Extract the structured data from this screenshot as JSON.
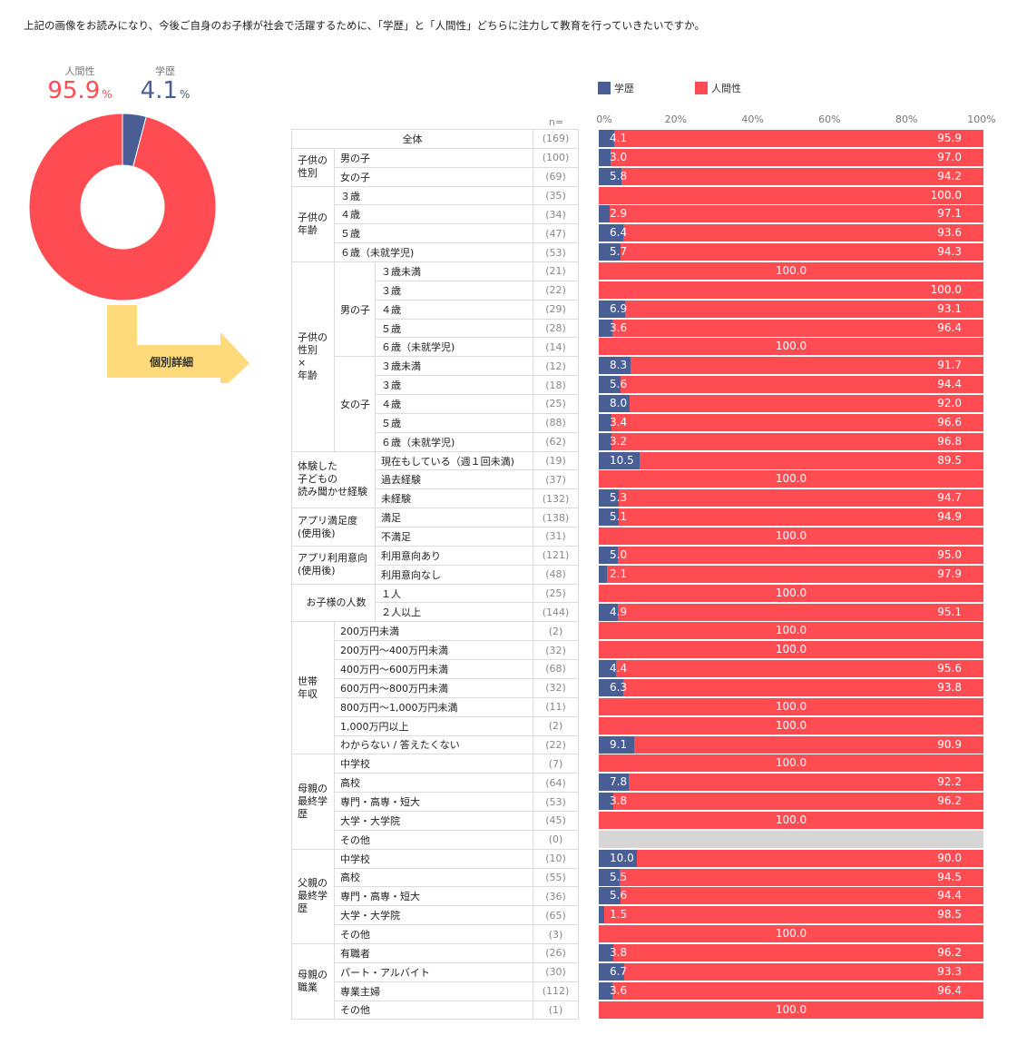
{
  "question": "上記の画像をお読みになり、今後ご自身のお子様が社会で活躍するために、「学歴」と「人間性」どちらに注力して教育を行っていきたいですか。",
  "summary": {
    "ningensei": {
      "label": "人間性",
      "value": "95.9",
      "unit": "%"
    },
    "gakureki": {
      "label": "学歴",
      "value": "4.1",
      "unit": "%"
    }
  },
  "callout_label": "個別詳細",
  "colors": {
    "gakureki": "#4A5E96",
    "ningensei": "#FF4B52",
    "none": "#D6D6D6"
  },
  "chart_data": [
    {
      "type": "pie",
      "variant": "donut",
      "slices": [
        {
          "name": "人間性",
          "value": 95.9
        },
        {
          "name": "学歴",
          "value": 4.1
        }
      ]
    },
    {
      "type": "bar",
      "orientation": "horizontal",
      "stacked": true,
      "legend": [
        {
          "name": "学歴"
        },
        {
          "name": "人間性"
        }
      ],
      "legend_position": "top",
      "n_label": "n=",
      "ticks": [
        "0%",
        "20%",
        "40%",
        "60%",
        "80%",
        "100%"
      ],
      "xlim": [
        0,
        100
      ],
      "rows": [
        {
          "a": "全体",
          "n": "(169)",
          "g": 4.1,
          "h": 95.9
        },
        {
          "a": "子供の\n性別",
          "b": "男の子",
          "n": "(100)",
          "g": 3.0,
          "h": 97.0
        },
        {
          "b": "女の子",
          "n": "(69)",
          "g": 5.8,
          "h": 94.2
        },
        {
          "a": "子供の\n年齢",
          "b": "３歳",
          "n": "(35)",
          "g": 0,
          "h": 100.0
        },
        {
          "b": "４歳",
          "n": "(34)",
          "g": 2.9,
          "h": 97.1
        },
        {
          "b": "５歳",
          "n": "(47)",
          "g": 6.4,
          "h": 93.6
        },
        {
          "b": "６歳（未就学児)",
          "n": "(53)",
          "g": 5.7,
          "h": 94.3
        },
        {
          "a": "子供の\n性別\n×\n年齢",
          "b": "男の子",
          "c": "３歳未満",
          "n": "(21)",
          "g": 0,
          "h": 100.0,
          "center": true
        },
        {
          "c": "３歳",
          "n": "(22)",
          "g": 0,
          "h": 100.0
        },
        {
          "c": "４歳",
          "n": "(29)",
          "g": 6.9,
          "h": 93.1
        },
        {
          "c": "５歳",
          "n": "(28)",
          "g": 3.6,
          "h": 96.4
        },
        {
          "c": "６歳（未就学児)",
          "n": "(14)",
          "g": 0,
          "h": 100.0,
          "center": true
        },
        {
          "b": "女の子",
          "c": "３歳未満",
          "n": "(12)",
          "g": 8.3,
          "h": 91.7
        },
        {
          "c": "３歳",
          "n": "(18)",
          "g": 5.6,
          "h": 94.4
        },
        {
          "c": "４歳",
          "n": "(25)",
          "g": 8.0,
          "h": 92.0
        },
        {
          "c": "５歳",
          "n": "(88)",
          "g": 3.4,
          "h": 96.6
        },
        {
          "c": "６歳（未就学児)",
          "n": "(62)",
          "g": 3.2,
          "h": 96.8
        },
        {
          "a": "体験した\n子どもの\n読み聞かせ経験",
          "c": "現在もしている（週１回未満)",
          "n": "(19)",
          "g": 10.5,
          "h": 89.5
        },
        {
          "c": "過去経験",
          "n": "(37)",
          "g": 0,
          "h": 100.0,
          "center": true
        },
        {
          "c": "未経験",
          "n": "(132)",
          "g": 5.3,
          "h": 94.7
        },
        {
          "a": "アプリ満足度\n(使用後)",
          "c": "満足",
          "n": "(138)",
          "g": 5.1,
          "h": 94.9
        },
        {
          "c": "不満足",
          "n": "(31)",
          "g": 0,
          "h": 100.0,
          "center": true
        },
        {
          "a": "アプリ利用意向\n(使用後)",
          "c": "利用意向あり",
          "n": "(121)",
          "g": 5.0,
          "h": 95.0
        },
        {
          "c": "利用意向なし",
          "n": "(48)",
          "g": 2.1,
          "h": 97.9
        },
        {
          "a": "お子様の人数",
          "c": "１人",
          "n": "(25)",
          "g": 0,
          "h": 100.0,
          "center": true
        },
        {
          "c": "２人以上",
          "n": "(144)",
          "g": 4.9,
          "h": 95.1
        },
        {
          "a": "世帯\n年収",
          "b": "200万円未満",
          "n": "(2)",
          "g": 0,
          "h": 100.0,
          "center": true
        },
        {
          "b": "200万円～400万円未満",
          "n": "(32)",
          "g": 0,
          "h": 100.0,
          "center": true
        },
        {
          "b": "400万円～600万円未満",
          "n": "(68)",
          "g": 4.4,
          "h": 95.6
        },
        {
          "b": "600万円～800万円未満",
          "n": "(32)",
          "g": 6.3,
          "h": 93.8
        },
        {
          "b": "800万円～1,000万円未満",
          "n": "(11)",
          "g": 0,
          "h": 100.0,
          "center": true
        },
        {
          "b": "1,000万円以上",
          "n": "(2)",
          "g": 0,
          "h": 100.0,
          "center": true
        },
        {
          "b": "わからない / 答えたくない",
          "n": "(22)",
          "g": 9.1,
          "h": 90.9
        },
        {
          "a": "母親の\n最終学歴",
          "b": "中学校",
          "n": "(7)",
          "g": 0,
          "h": 100.0,
          "center": true
        },
        {
          "b": "高校",
          "n": "(64)",
          "g": 7.8,
          "h": 92.2
        },
        {
          "b": "専門・高専・短大",
          "n": "(53)",
          "g": 3.8,
          "h": 96.2
        },
        {
          "b": "大学・大学院",
          "n": "(45)",
          "g": 0,
          "h": 100.0,
          "center": true
        },
        {
          "b": "その他",
          "n": "(0)",
          "g": 0,
          "h": 0,
          "empty": true
        },
        {
          "a": "父親の\n最終学歴",
          "b": "中学校",
          "n": "(10)",
          "g": 10.0,
          "h": 90.0
        },
        {
          "b": "高校",
          "n": "(55)",
          "g": 5.5,
          "h": 94.5
        },
        {
          "b": "専門・高専・短大",
          "n": "(36)",
          "g": 5.6,
          "h": 94.4
        },
        {
          "b": "大学・大学院",
          "n": "(65)",
          "g": 1.5,
          "h": 98.5
        },
        {
          "b": "その他",
          "n": "(3)",
          "g": 0,
          "h": 100.0,
          "center": true
        },
        {
          "a": "母親の\n職業",
          "b": "有職者",
          "n": "(26)",
          "g": 3.8,
          "h": 96.2
        },
        {
          "b": "パート・アルバイト",
          "n": "(30)",
          "g": 6.7,
          "h": 93.3
        },
        {
          "b": "専業主婦",
          "n": "(112)",
          "g": 3.6,
          "h": 96.4
        },
        {
          "b": "その他",
          "n": "(1)",
          "g": 0,
          "h": 100.0,
          "center": true
        }
      ]
    }
  ]
}
